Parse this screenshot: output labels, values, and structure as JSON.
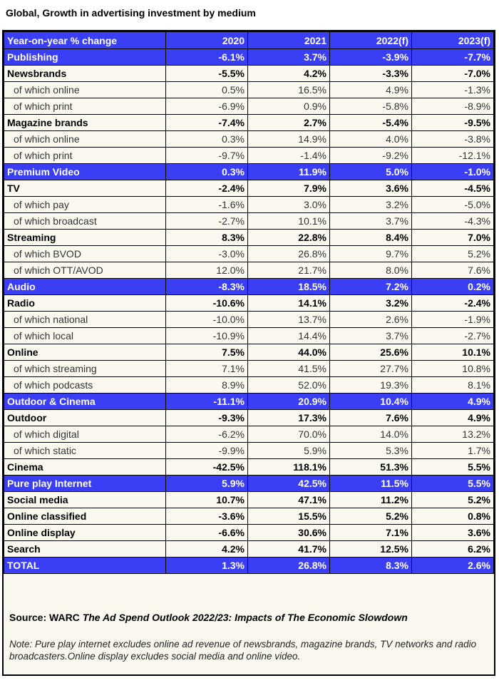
{
  "title": "Global, Growth in advertising investment by medium",
  "header": [
    "Year-on-year % change",
    "2020",
    "2021",
    "2022(f)",
    "2023(f)"
  ],
  "rows": [
    {
      "type": "sec",
      "label": "Publishing",
      "v": [
        "-6.1%",
        "3.7%",
        "-3.9%",
        "-7.7%"
      ]
    },
    {
      "type": "bold",
      "label": "Newsbrands",
      "v": [
        "-5.5%",
        "4.2%",
        "-3.3%",
        "-7.0%"
      ]
    },
    {
      "type": "sub",
      "label": "of which online",
      "v": [
        "0.5%",
        "16.5%",
        "4.9%",
        "-1.3%"
      ]
    },
    {
      "type": "sub",
      "label": "of which print",
      "v": [
        "-6.9%",
        "0.9%",
        "-5.8%",
        "-8.9%"
      ]
    },
    {
      "type": "bold",
      "label": "Magazine brands",
      "v": [
        "-7.4%",
        "2.7%",
        "-5.4%",
        "-9.5%"
      ]
    },
    {
      "type": "sub",
      "label": "of which online",
      "v": [
        "0.3%",
        "14.9%",
        "4.0%",
        "-3.8%"
      ]
    },
    {
      "type": "sub",
      "label": "of which print",
      "v": [
        "-9.7%",
        "-1.4%",
        "-9.2%",
        "-12.1%"
      ]
    },
    {
      "type": "sec",
      "label": "Premium Video",
      "v": [
        "0.3%",
        "11.9%",
        "5.0%",
        "-1.0%"
      ]
    },
    {
      "type": "bold",
      "label": "TV",
      "v": [
        "-2.4%",
        "7.9%",
        "3.6%",
        "-4.5%"
      ]
    },
    {
      "type": "sub",
      "label": "of which pay",
      "v": [
        "-1.6%",
        "3.0%",
        "3.2%",
        "-5.0%"
      ]
    },
    {
      "type": "sub",
      "label": "of which broadcast",
      "v": [
        "-2.7%",
        "10.1%",
        "3.7%",
        "-4.3%"
      ]
    },
    {
      "type": "bold",
      "label": "Streaming",
      "v": [
        "8.3%",
        "22.8%",
        "8.4%",
        "7.0%"
      ]
    },
    {
      "type": "sub",
      "label": "of which BVOD",
      "v": [
        "-3.0%",
        "26.8%",
        "9.7%",
        "5.2%"
      ]
    },
    {
      "type": "sub",
      "label": "of which OTT/AVOD",
      "v": [
        "12.0%",
        "21.7%",
        "8.0%",
        "7.6%"
      ]
    },
    {
      "type": "sec",
      "label": "Audio",
      "v": [
        "-8.3%",
        "18.5%",
        "7.2%",
        "0.2%"
      ]
    },
    {
      "type": "bold",
      "label": "Radio",
      "v": [
        "-10.6%",
        "14.1%",
        "3.2%",
        "-2.4%"
      ]
    },
    {
      "type": "sub",
      "label": "of which national",
      "v": [
        "-10.0%",
        "13.7%",
        "2.6%",
        "-1.9%"
      ]
    },
    {
      "type": "sub",
      "label": "of which local",
      "v": [
        "-10.9%",
        "14.4%",
        "3.7%",
        "-2.7%"
      ]
    },
    {
      "type": "bold",
      "label": "Online",
      "v": [
        "7.5%",
        "44.0%",
        "25.6%",
        "10.1%"
      ]
    },
    {
      "type": "sub",
      "label": "of which streaming",
      "v": [
        "7.1%",
        "41.5%",
        "27.7%",
        "10.8%"
      ]
    },
    {
      "type": "sub",
      "label": "of which podcasts",
      "v": [
        "8.9%",
        "52.0%",
        "19.3%",
        "8.1%"
      ]
    },
    {
      "type": "sec",
      "label": "Outdoor & Cinema",
      "v": [
        "-11.1%",
        "20.9%",
        "10.4%",
        "4.9%"
      ]
    },
    {
      "type": "bold",
      "label": "Outdoor",
      "v": [
        "-9.3%",
        "17.3%",
        "7.6%",
        "4.9%"
      ]
    },
    {
      "type": "sub",
      "label": "of which digital",
      "v": [
        "-6.2%",
        "70.0%",
        "14.0%",
        "13.2%"
      ]
    },
    {
      "type": "sub",
      "label": "of which static",
      "v": [
        "-9.9%",
        "5.9%",
        "5.3%",
        "1.7%"
      ]
    },
    {
      "type": "bold",
      "label": "Cinema",
      "v": [
        "-42.5%",
        "118.1%",
        "51.3%",
        "5.5%"
      ]
    },
    {
      "type": "sec",
      "label": "Pure play Internet",
      "v": [
        "5.9%",
        "42.5%",
        "11.5%",
        "5.5%"
      ]
    },
    {
      "type": "bold",
      "label": "Social media",
      "v": [
        "10.7%",
        "47.1%",
        "11.2%",
        "5.2%"
      ]
    },
    {
      "type": "bold",
      "label": "Online classified",
      "v": [
        "-3.6%",
        "15.5%",
        "5.2%",
        "0.8%"
      ]
    },
    {
      "type": "bold",
      "label": "Online display",
      "v": [
        "-6.6%",
        "30.6%",
        "7.1%",
        "3.6%"
      ]
    },
    {
      "type": "bold",
      "label": "Search",
      "v": [
        "4.2%",
        "41.7%",
        "12.5%",
        "6.2%"
      ]
    },
    {
      "type": "total",
      "label": "TOTAL",
      "v": [
        "1.3%",
        "26.8%",
        "8.3%",
        "2.6%"
      ]
    }
  ],
  "source": {
    "prefix": "Source: WARC ",
    "title": "The Ad Spend Outlook 2022/23: Impacts of The Economic Slowdown"
  },
  "note": "Note: Pure play internet excludes online ad revenue of newsbrands, magazine brands, TV networks and radio broadcasters.Online display excludes social media and online video.",
  "colors": {
    "header_bg": "#3a3ef5",
    "header_text": "#ffffff",
    "table_bg": "#fbf8f0"
  }
}
